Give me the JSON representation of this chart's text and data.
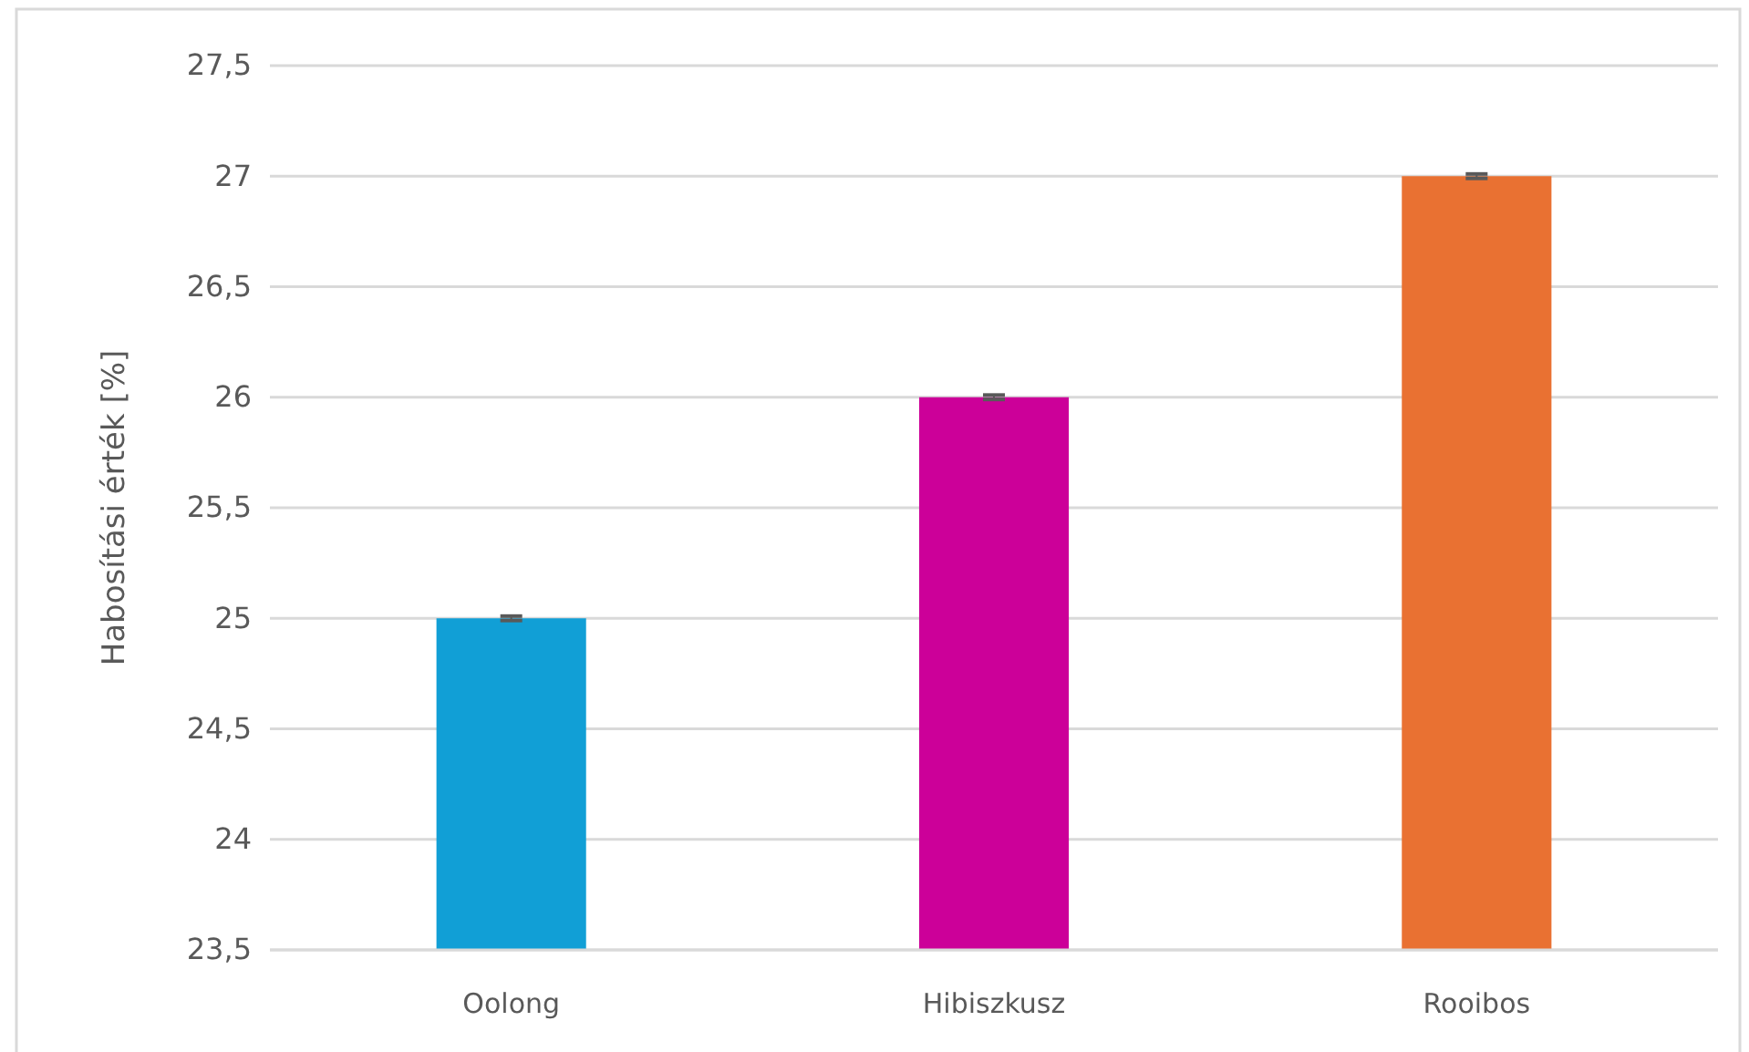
{
  "chart_data": {
    "type": "bar",
    "ylabel": "Habosítási érték [%]",
    "categories": [
      "Oolong",
      "Hibiszkusz",
      "Rooibos"
    ],
    "values": [
      25,
      26,
      27
    ],
    "colors": [
      "#119fd6",
      "#cc0099",
      "#e97132"
    ],
    "errors": [
      0.01,
      0.01,
      0.01
    ],
    "ylim": [
      23.5,
      27.5
    ],
    "yticks": [
      {
        "value": 23.5,
        "label": "23,5"
      },
      24,
      {
        "value": 24.5,
        "label": "24,5"
      },
      25,
      {
        "value": 25.5,
        "label": "25,5"
      },
      26,
      {
        "value": 26.5,
        "label": "26,5"
      },
      27,
      {
        "value": 27.5,
        "label": "27,5"
      }
    ],
    "grid": "y"
  }
}
